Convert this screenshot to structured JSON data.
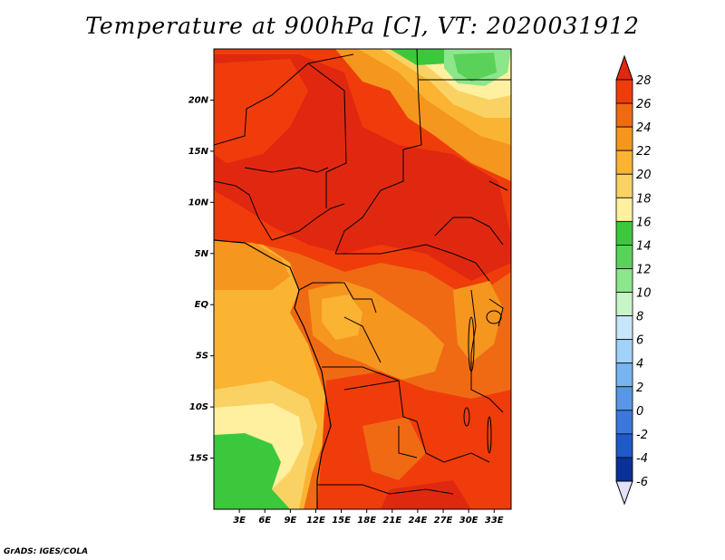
{
  "title": "Temperature at 900hPa [C], VT: 2020031912",
  "credit": "GrADS: IGES/COLA",
  "map": {
    "lon_ticks": [
      {
        "value": 3,
        "label": "3E"
      },
      {
        "value": 6,
        "label": "6E"
      },
      {
        "value": 9,
        "label": "9E"
      },
      {
        "value": 12,
        "label": "12E"
      },
      {
        "value": 15,
        "label": "15E"
      },
      {
        "value": 18,
        "label": "18E"
      },
      {
        "value": 21,
        "label": "21E"
      },
      {
        "value": 24,
        "label": "24E"
      },
      {
        "value": 27,
        "label": "27E"
      },
      {
        "value": 30,
        "label": "30E"
      },
      {
        "value": 33,
        "label": "33E"
      }
    ],
    "lat_ticks": [
      {
        "value": 20,
        "label": "20N"
      },
      {
        "value": 15,
        "label": "15N"
      },
      {
        "value": 10,
        "label": "10N"
      },
      {
        "value": 5,
        "label": "5N"
      },
      {
        "value": 0,
        "label": "EQ"
      },
      {
        "value": -5,
        "label": "5S"
      },
      {
        "value": -10,
        "label": "10S"
      },
      {
        "value": -15,
        "label": "15S"
      }
    ],
    "lon_range": [
      0,
      35
    ],
    "lat_range": [
      -20,
      25
    ]
  },
  "colorbar": {
    "levels": [
      "28",
      "26",
      "24",
      "22",
      "20",
      "18",
      "16",
      "14",
      "12",
      "10",
      "8",
      "6",
      "4",
      "2",
      "0",
      "-2",
      "-4",
      "-6"
    ],
    "colors": {
      "above_28": "#e02810",
      "26_28": "#f03c0a",
      "24_26": "#f06a14",
      "22_24": "#f5961e",
      "20_22": "#fab432",
      "18_20": "#fad264",
      "16_18": "#fff0a0",
      "14_16": "#3cc83c",
      "12_14": "#5ad25a",
      "10_12": "#8ce68c",
      "8_10": "#c8f5c8",
      "6_8": "#c8e6fa",
      "4_6": "#a0d2fa",
      "2_4": "#78b4f0",
      "0_2": "#5a96e6",
      "neg2_0": "#3c78dc",
      "neg4_neg2": "#1e5ac8",
      "neg6_neg4": "#0a3296",
      "below_neg6": "#e1e1fa"
    }
  }
}
